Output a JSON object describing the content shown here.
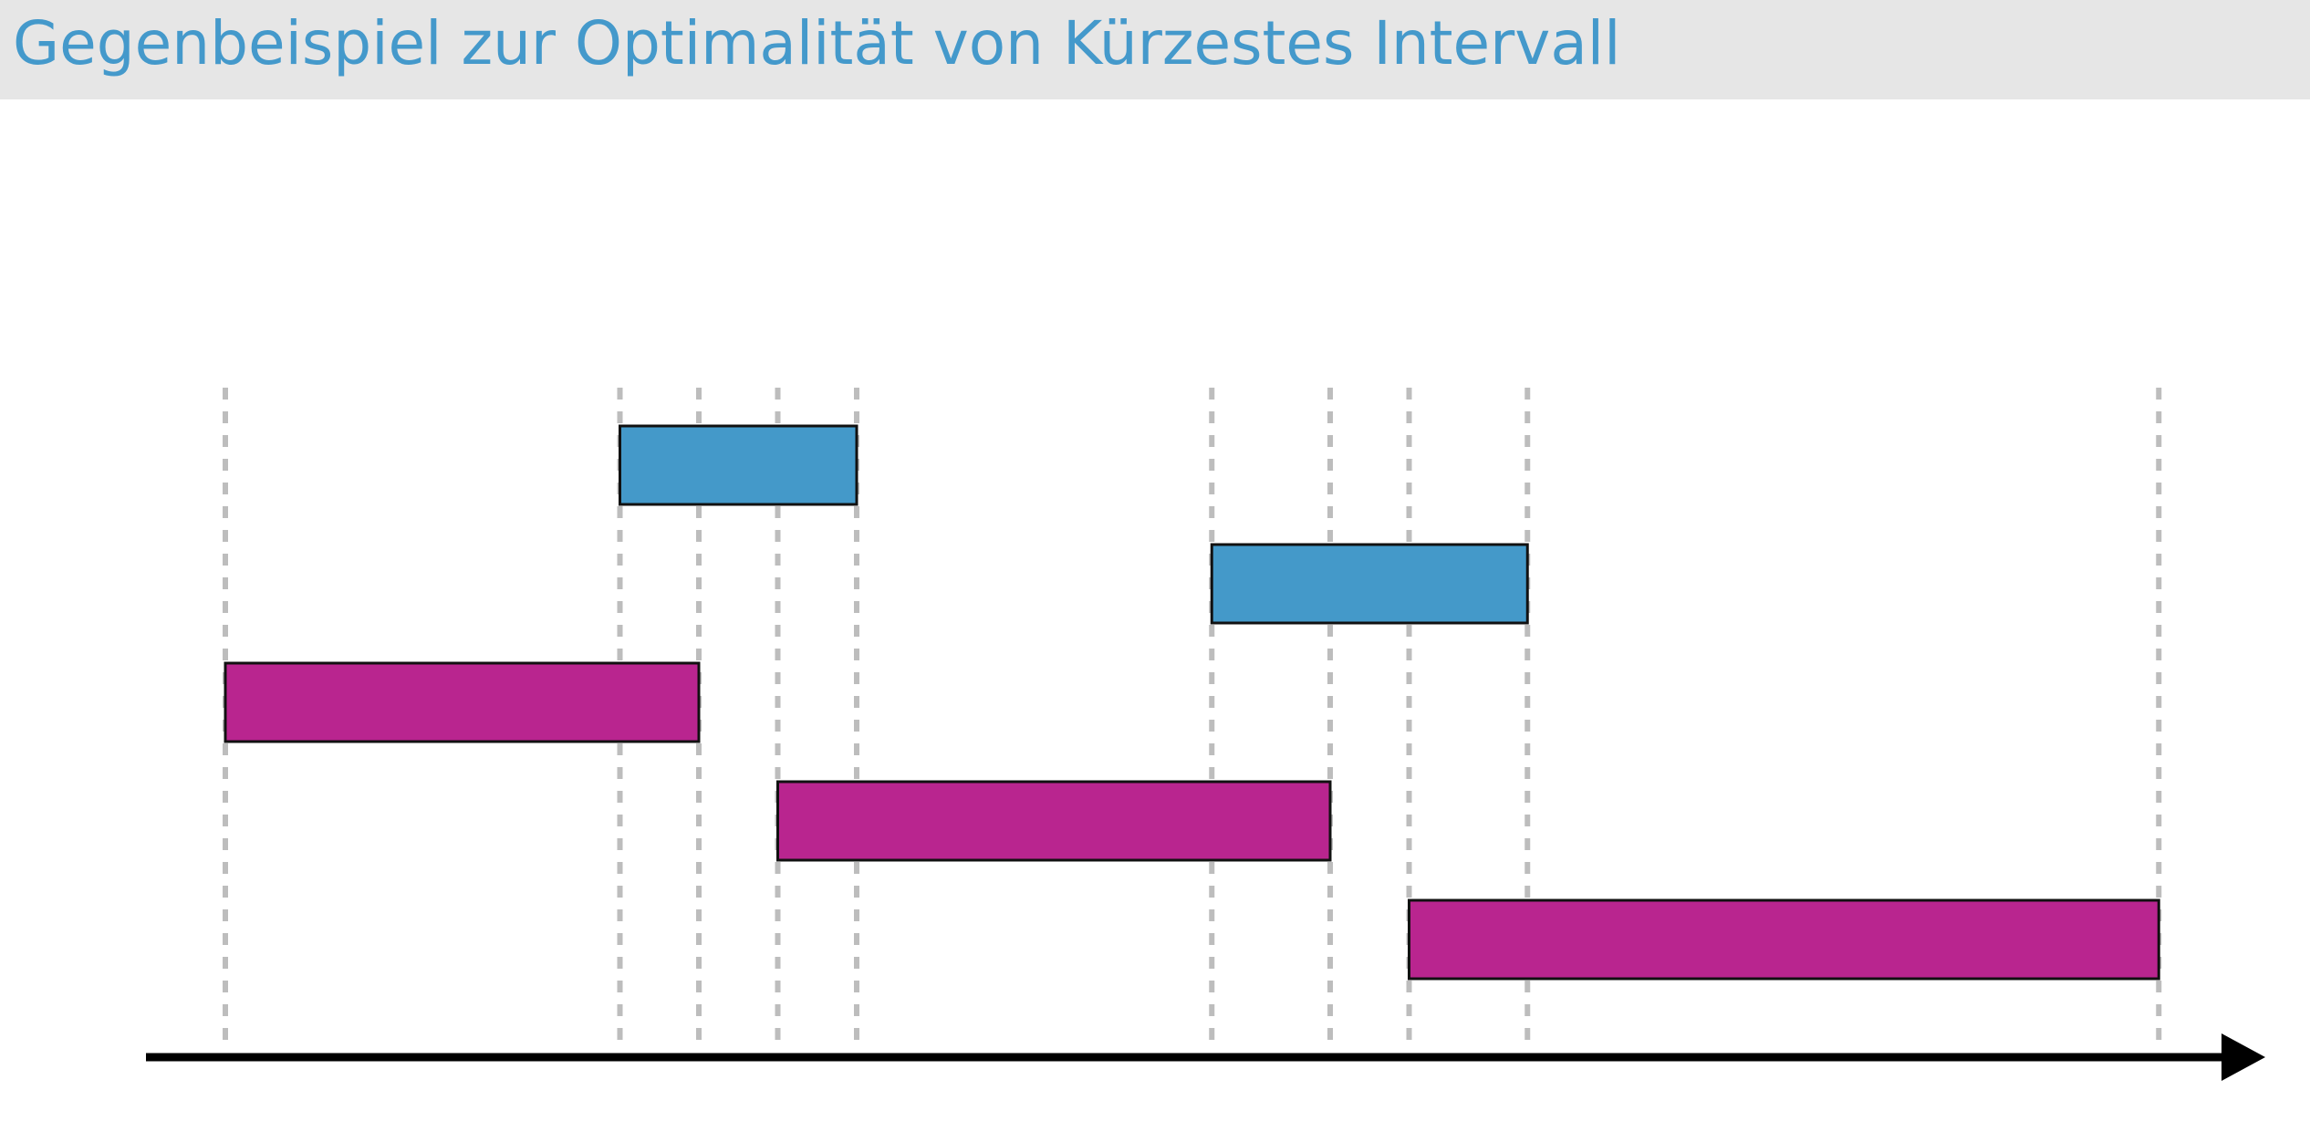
{
  "slide": {
    "title": "Gegenbeispiel zur Optimalität von Kürzestes Intervall"
  },
  "colors": {
    "title_text": "#4499cb",
    "title_bar": "#e6e6e6",
    "blue_interval": "#4499c9",
    "magenta_interval": "#b9258f",
    "interval_border": "#111111",
    "guide_line": "#bdbdbd",
    "axis": "#000000"
  },
  "diagram": {
    "time_points": [
      0,
      5,
      6,
      7,
      8,
      12.5,
      14,
      15,
      16.5,
      24.5
    ],
    "intervals": [
      {
        "name": "blue-interval-1",
        "group": "blue",
        "lane": 0,
        "start": 5,
        "end": 8
      },
      {
        "name": "blue-interval-2",
        "group": "blue",
        "lane": 1,
        "start": 12.5,
        "end": 16.5
      },
      {
        "name": "magenta-interval-1",
        "group": "magenta",
        "lane": 2,
        "start": 0,
        "end": 6
      },
      {
        "name": "magenta-interval-2",
        "group": "magenta",
        "lane": 3,
        "start": 7,
        "end": 14
      },
      {
        "name": "magenta-interval-3",
        "group": "magenta",
        "lane": 4,
        "start": 15,
        "end": 24.5
      }
    ]
  }
}
